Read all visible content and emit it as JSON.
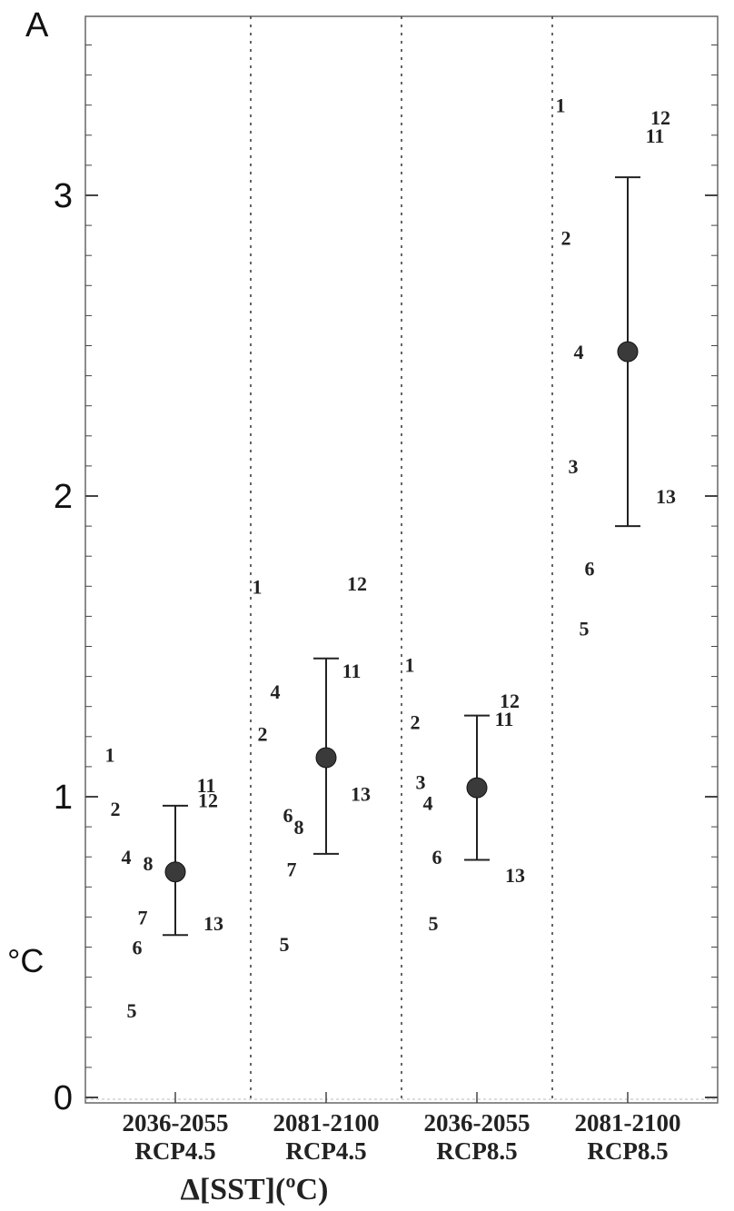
{
  "chart_data": {
    "type": "scatter",
    "panel_label": "A",
    "unit_label": "°C",
    "xlabel": "Δ[SST](ºC)",
    "ylabel": "",
    "ylim": [
      0,
      3.6
    ],
    "yticks": [
      0,
      1,
      2,
      3
    ],
    "grid": false,
    "categories": [
      {
        "period": "2036-2055",
        "scenario": "RCP4.5"
      },
      {
        "period": "2081-2100",
        "scenario": "RCP4.5"
      },
      {
        "period": "2036-2055",
        "scenario": "RCP8.5"
      },
      {
        "period": "2081-2100",
        "scenario": "RCP8.5"
      }
    ],
    "ensemble_mean": [
      {
        "category": 0,
        "mean": 0.75,
        "low": 0.54,
        "high": 0.97
      },
      {
        "category": 1,
        "mean": 1.13,
        "low": 0.81,
        "high": 1.46
      },
      {
        "category": 2,
        "mean": 1.03,
        "low": 0.79,
        "high": 1.27
      },
      {
        "category": 3,
        "mean": 2.48,
        "low": 1.9,
        "high": 3.06
      }
    ],
    "models": [
      {
        "category": 0,
        "points": [
          {
            "label": "1",
            "y": 1.14,
            "dx": -72
          },
          {
            "label": "2",
            "y": 0.96,
            "dx": -66
          },
          {
            "label": "4",
            "y": 0.8,
            "dx": -54
          },
          {
            "label": "8",
            "y": 0.78,
            "dx": -30
          },
          {
            "label": "7",
            "y": 0.6,
            "dx": -36
          },
          {
            "label": "6",
            "y": 0.5,
            "dx": -42
          },
          {
            "label": "5",
            "y": 0.29,
            "dx": -48
          },
          {
            "label": "11",
            "y": 1.04,
            "dx": 34
          },
          {
            "label": "12",
            "y": 0.99,
            "dx": 36
          },
          {
            "label": "13",
            "y": 0.58,
            "dx": 42
          }
        ]
      },
      {
        "category": 1,
        "points": [
          {
            "label": "1",
            "y": 1.7,
            "dx": -76
          },
          {
            "label": "4",
            "y": 1.35,
            "dx": -56
          },
          {
            "label": "2",
            "y": 1.21,
            "dx": -70
          },
          {
            "label": "6",
            "y": 0.94,
            "dx": -42
          },
          {
            "label": "8",
            "y": 0.9,
            "dx": -30
          },
          {
            "label": "7",
            "y": 0.76,
            "dx": -38
          },
          {
            "label": "5",
            "y": 0.51,
            "dx": -46
          },
          {
            "label": "12",
            "y": 1.71,
            "dx": 34
          },
          {
            "label": "11",
            "y": 1.42,
            "dx": 28
          },
          {
            "label": "13",
            "y": 1.01,
            "dx": 38
          }
        ]
      },
      {
        "category": 2,
        "points": [
          {
            "label": "1",
            "y": 1.44,
            "dx": -74
          },
          {
            "label": "2",
            "y": 1.25,
            "dx": -68
          },
          {
            "label": "3",
            "y": 1.05,
            "dx": -62
          },
          {
            "label": "4",
            "y": 0.98,
            "dx": -54
          },
          {
            "label": "6",
            "y": 0.8,
            "dx": -44
          },
          {
            "label": "5",
            "y": 0.58,
            "dx": -48
          },
          {
            "label": "12",
            "y": 1.32,
            "dx": 36
          },
          {
            "label": "11",
            "y": 1.26,
            "dx": 30
          },
          {
            "label": "13",
            "y": 0.74,
            "dx": 42
          }
        ]
      },
      {
        "category": 3,
        "points": [
          {
            "label": "1",
            "y": 3.3,
            "dx": -74
          },
          {
            "label": "2",
            "y": 2.86,
            "dx": -68
          },
          {
            "label": "4",
            "y": 2.48,
            "dx": -54
          },
          {
            "label": "3",
            "y": 2.1,
            "dx": -60
          },
          {
            "label": "6",
            "y": 1.76,
            "dx": -42
          },
          {
            "label": "5",
            "y": 1.56,
            "dx": -48
          },
          {
            "label": "12",
            "y": 3.26,
            "dx": 36
          },
          {
            "label": "11",
            "y": 3.2,
            "dx": 30
          },
          {
            "label": "13",
            "y": 2.0,
            "dx": 42
          }
        ]
      }
    ],
    "colors": {
      "marker": "#3a3a3a",
      "axis": "#666666",
      "text": "#222222"
    }
  }
}
